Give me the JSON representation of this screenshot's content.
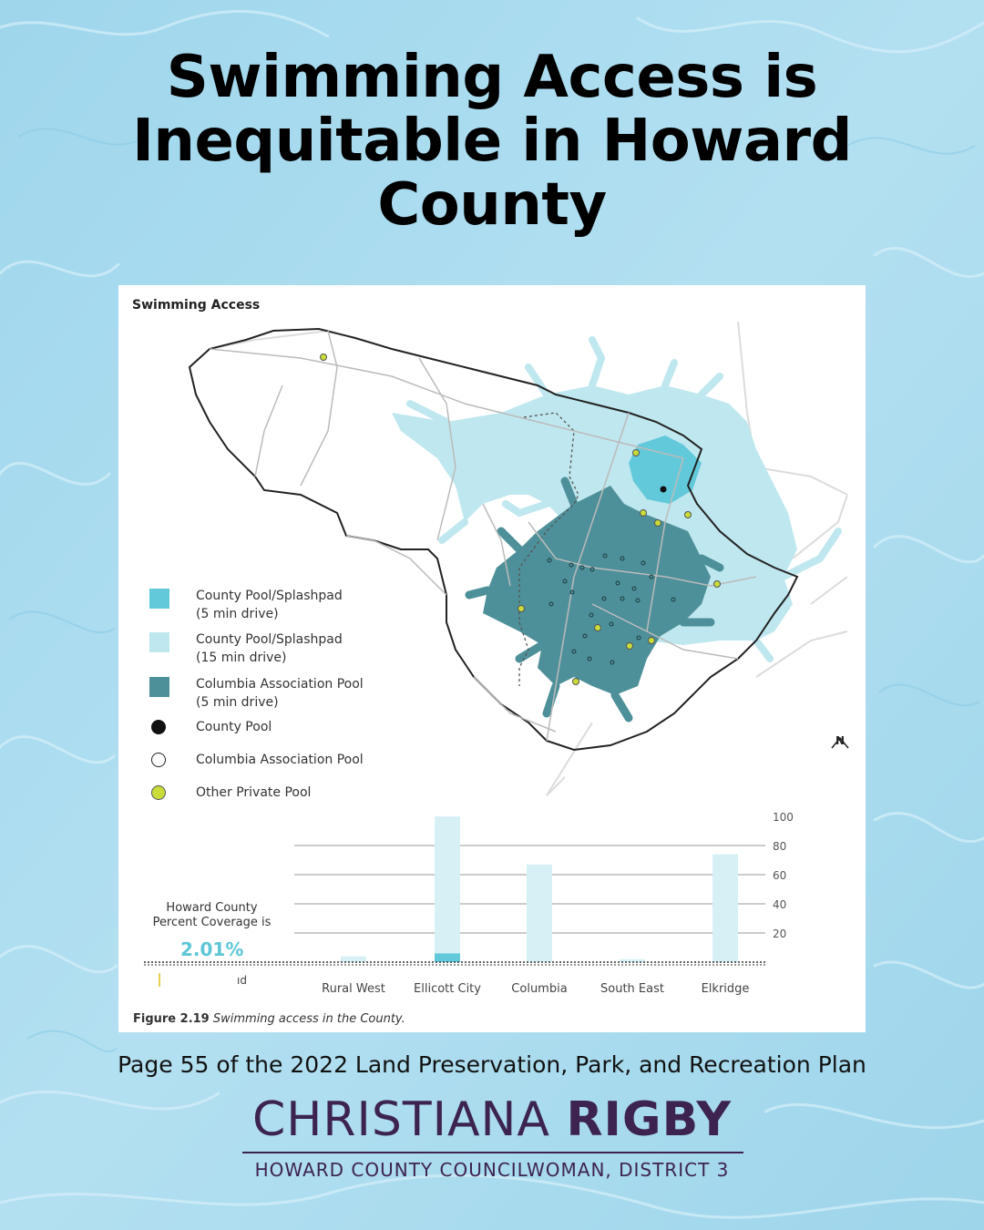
{
  "headline": {
    "line1": "Swimming Access is",
    "line2": "Inequitable in Howard",
    "line3": "County"
  },
  "colors": {
    "background_water": "#a9dbef",
    "county_pool_5min": "#62c9da",
    "county_pool_15min": "#bfe7ef",
    "columbia_pool_5min": "#4e9099",
    "county_pool_dot": "#111111",
    "other_private_pool_dot": "#c9dc3a",
    "chart_bar_light": "#d7f0f5",
    "chart_bar_highlight": "#62c9da",
    "brand": "#3d2350"
  },
  "map": {
    "title": "Swimming Access",
    "north_label": "N",
    "legend": [
      {
        "label_line1": "County Pool/Splashpad",
        "label_line2": "(5 min drive)",
        "symbol": "square",
        "color": "#62c9da"
      },
      {
        "label_line1": "County Pool/Splashpad",
        "label_line2": "(15 min drive)",
        "symbol": "square",
        "color": "#bfe7ef"
      },
      {
        "label_line1": "Columbia Association Pool",
        "label_line2": "(5 min drive)",
        "symbol": "square",
        "color": "#4e9099"
      },
      {
        "label_line1": "County Pool",
        "label_line2": "",
        "symbol": "filled-circle",
        "color": "#111111"
      },
      {
        "label_line1": "Columbia Association Pool",
        "label_line2": "",
        "symbol": "open-circle",
        "color": "#ffffff"
      },
      {
        "label_line1": "Other Private Pool",
        "label_line2": "",
        "symbol": "filled-circle",
        "color": "#c9dc3a"
      }
    ]
  },
  "chart_data": {
    "type": "bar",
    "categories": [
      "Rural West",
      "Ellicott City",
      "Columbia",
      "South East",
      "Elkridge"
    ],
    "series": [
      {
        "values": [
          4,
          100,
          67,
          2,
          74
        ]
      },
      {
        "values": [
          0,
          6,
          0,
          0,
          0
        ]
      }
    ],
    "yticks": [
      "100",
      "80",
      "60",
      "40",
      "20"
    ],
    "ylim": [
      0,
      100
    ],
    "grid": true
  },
  "coverage": {
    "label_line1": "Howard County",
    "label_line2": "Percent Coverage is",
    "value": "2.01%",
    "stray_text": "ıd"
  },
  "caption": {
    "figure_number": "Figure 2.19",
    "text": "Swimming access in the County."
  },
  "page_note": "Page 55 of the 2022 Land Preservation, Park, and Recreation Plan",
  "brand": {
    "first_name": "CHRISTIANA",
    "last_name": "RIGBY",
    "subtitle": "HOWARD COUNTY COUNCILWOMAN, DISTRICT 3"
  }
}
